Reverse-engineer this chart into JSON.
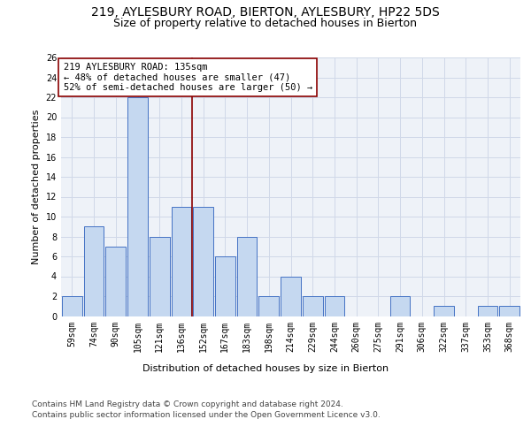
{
  "title1": "219, AYLESBURY ROAD, BIERTON, AYLESBURY, HP22 5DS",
  "title2": "Size of property relative to detached houses in Bierton",
  "xlabel": "Distribution of detached houses by size in Bierton",
  "ylabel": "Number of detached properties",
  "categories": [
    "59sqm",
    "74sqm",
    "90sqm",
    "105sqm",
    "121sqm",
    "136sqm",
    "152sqm",
    "167sqm",
    "183sqm",
    "198sqm",
    "214sqm",
    "229sqm",
    "244sqm",
    "260sqm",
    "275sqm",
    "291sqm",
    "306sqm",
    "322sqm",
    "337sqm",
    "353sqm",
    "368sqm"
  ],
  "values": [
    2,
    9,
    7,
    22,
    8,
    11,
    11,
    6,
    8,
    2,
    4,
    2,
    2,
    0,
    0,
    2,
    0,
    1,
    0,
    1,
    1
  ],
  "bar_color": "#c5d8f0",
  "bar_edge_color": "#4472c4",
  "grid_color": "#d0d8e8",
  "background_color": "#eef2f8",
  "ref_line_x": 5.5,
  "ref_line_color": "#8b0000",
  "annotation_text": "219 AYLESBURY ROAD: 135sqm\n← 48% of detached houses are smaller (47)\n52% of semi-detached houses are larger (50) →",
  "annotation_box_color": "#8b0000",
  "ylim": [
    0,
    26
  ],
  "yticks": [
    0,
    2,
    4,
    6,
    8,
    10,
    12,
    14,
    16,
    18,
    20,
    22,
    24,
    26
  ],
  "footer1": "Contains HM Land Registry data © Crown copyright and database right 2024.",
  "footer2": "Contains public sector information licensed under the Open Government Licence v3.0.",
  "title_fontsize": 10,
  "subtitle_fontsize": 9,
  "axis_label_fontsize": 8,
  "tick_fontsize": 7,
  "annotation_fontsize": 7.5,
  "footer_fontsize": 6.5
}
